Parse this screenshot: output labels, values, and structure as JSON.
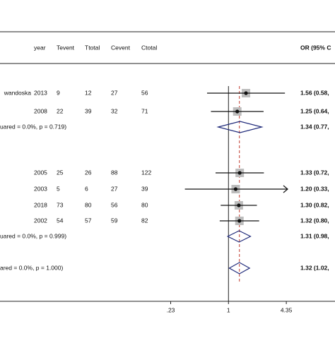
{
  "chart_data": {
    "type": "forest",
    "columns": [
      "year",
      "Tevent",
      "Ttotal",
      "Cevent",
      "Ctotal",
      "OR (95% C"
    ],
    "studies": [
      {
        "study": "wandoska",
        "year": 2013,
        "tevent": 9,
        "ttotal": 12,
        "cevent": 27,
        "ctotal": 56,
        "or": 1.56,
        "lo": 0.58,
        "hi": 4.2,
        "or_label": "1.56 (0.58,"
      },
      {
        "year": 2008,
        "tevent": 22,
        "ttotal": 39,
        "cevent": 32,
        "ctotal": 71,
        "or": 1.25,
        "lo": 0.64,
        "hi": 2.44,
        "or_label": "1.25 (0.64,"
      },
      {
        "year": 2005,
        "tevent": 25,
        "ttotal": 26,
        "cevent": 88,
        "ctotal": 122,
        "or": 1.33,
        "lo": 0.72,
        "hi": 2.46,
        "or_label": "1.33 (0.72,"
      },
      {
        "year": 2003,
        "tevent": 5,
        "ttotal": 6,
        "cevent": 27,
        "ctotal": 39,
        "or": 1.2,
        "lo": 0.33,
        "hi": 4.5,
        "or_label": "1.20 (0.33,"
      },
      {
        "year": 2018,
        "tevent": 73,
        "ttotal": 80,
        "cevent": 56,
        "ctotal": 80,
        "or": 1.3,
        "lo": 0.82,
        "hi": 2.06,
        "or_label": "1.30 (0.82,"
      },
      {
        "year": 2002,
        "tevent": 54,
        "ttotal": 57,
        "cevent": 59,
        "ctotal": 82,
        "or": 1.32,
        "lo": 0.8,
        "hi": 2.18,
        "or_label": "1.32 (0.80,"
      }
    ],
    "subtotals": [
      {
        "label": "uared = 0.0%, p = 0.719)",
        "or": 1.34,
        "lo": 0.77,
        "hi": 2.33,
        "or_label": "1.34 (0.77,"
      },
      {
        "label": "uared = 0.0%, p = 0.999)",
        "or": 1.31,
        "lo": 0.98,
        "hi": 1.75,
        "or_label": "1.31 (0.98,"
      },
      {
        "label": "ared = 0.0%, p = 1.000)",
        "or": 1.32,
        "lo": 1.02,
        "hi": 1.71,
        "or_label": "1.32 (1.02,"
      }
    ],
    "log_scale": true,
    "xlim": [
      0.003,
      15
    ],
    "xticks": [
      {
        "value": 0.23,
        "label": ".23"
      },
      1,
      4.35
    ],
    "reference_color": "#c0392b",
    "diamond_color": "#1f2a7a"
  }
}
